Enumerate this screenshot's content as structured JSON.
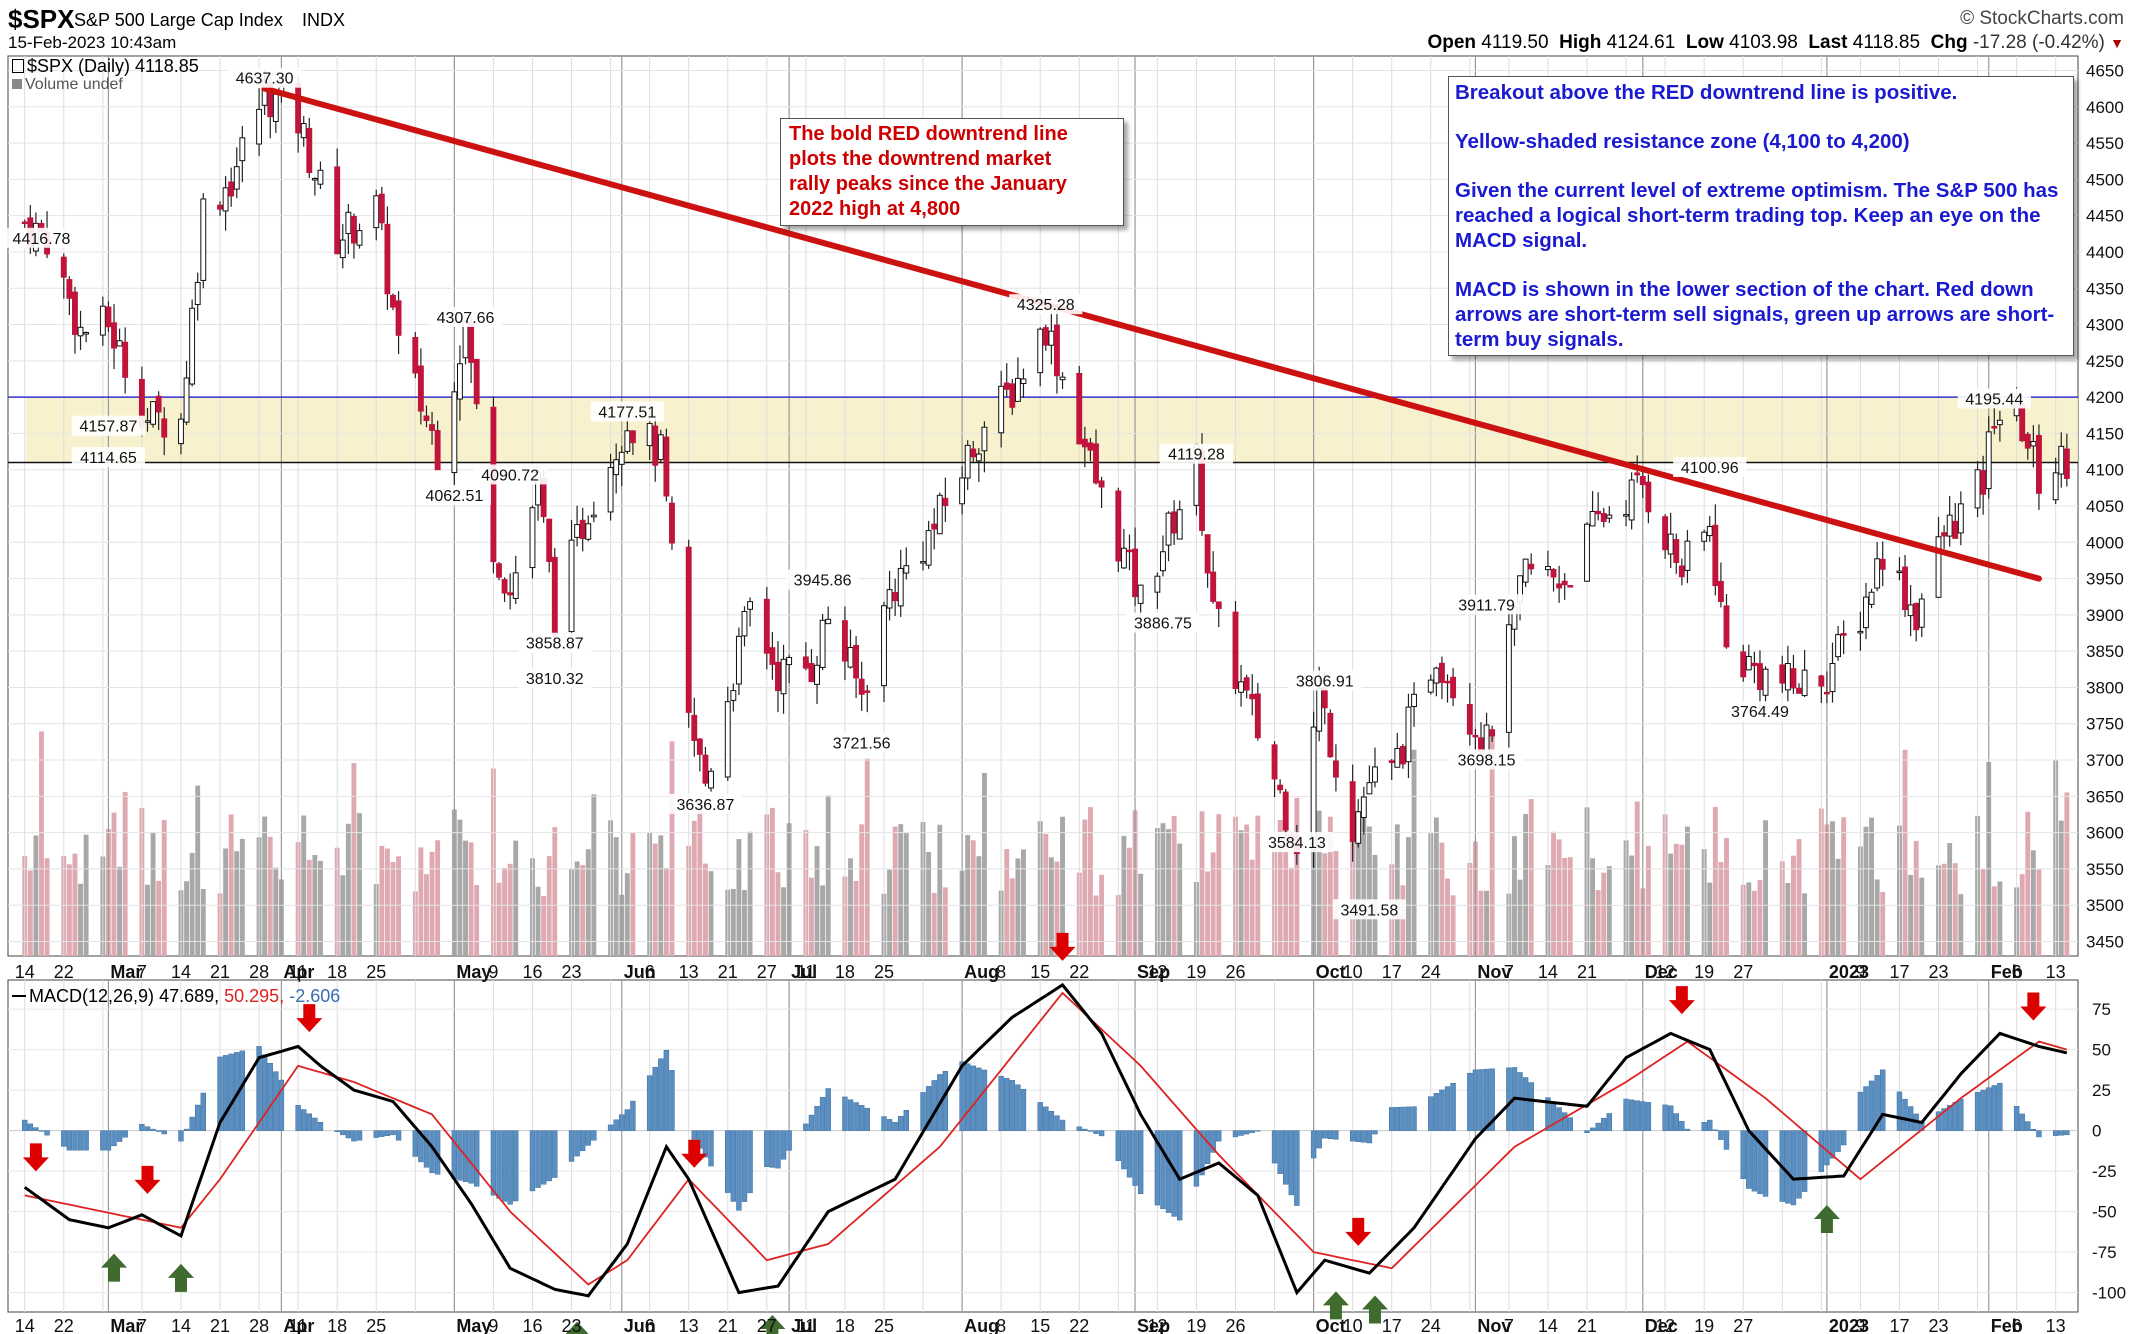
{
  "header": {
    "symbol": "$SPX",
    "description": "S&P 500 Large Cap Index",
    "exchange": "INDX",
    "timestamp": "15-Feb-2023 10:43am",
    "brand": "© StockCharts.com",
    "open_label": "Open",
    "open": "4119.50",
    "high_label": "High",
    "high": "4124.61",
    "low_label": "Low",
    "low": "4103.98",
    "last_label": "Last",
    "last": "4118.85",
    "chg_label": "Chg",
    "chg": "-17.28 (-0.42%)"
  },
  "legend": {
    "price": "$SPX (Daily) 4118.85",
    "volume": "Volume undef",
    "macd_label": "MACD(12,26,9)",
    "macd_value": "47.689,",
    "signal_value": "50.295,",
    "hist_value": "-2.606"
  },
  "annotations": {
    "red_note": [
      "The bold RED downtrend line",
      "plots the downtrend market",
      "rally peaks since the January",
      "2022 high at 4,800"
    ],
    "blue_note": [
      "Breakout above the RED downtrend line is positive.",
      "Yellow-shaded resistance zone (4,100 to 4,200)",
      "Given the current level of extreme optimism. The S&P 500 has reached a logical short-term trading top. Keep an eye on the MACD signal.",
      "MACD is shown in the lower section of the chart. Red down arrows are short-term sell signals, green up arrows are short-term buy signals."
    ]
  },
  "colors": {
    "up": "#ffffff",
    "down": "#c0143c",
    "candle_outline": "#000000",
    "trendline": "#cc1111",
    "zone": "#f6f0c4",
    "blue_line": "#3333cc",
    "macd": "#000000",
    "signal": "#dd2222",
    "hist": "#5b8fc2",
    "vol_up": "#a8a8a8",
    "vol_down": "#dfa9b1",
    "sell_arrow": "#dd0000",
    "buy_arrow": "#3f6b2f"
  },
  "chart_data": [
    {
      "type": "candlestick",
      "title": "$SPX (Daily) 4118.85",
      "y_axis": {
        "ticks": [
          3450,
          3500,
          3550,
          3600,
          3650,
          3700,
          3750,
          3800,
          3850,
          3900,
          3950,
          4000,
          4050,
          4100,
          4150,
          4200,
          4250,
          4300,
          4350,
          4400,
          4450,
          4500,
          4550,
          4600,
          4650
        ],
        "range": [
          3430,
          4670
        ]
      },
      "x_axis_labels": [
        "14",
        "22",
        "Mar",
        "7",
        "14",
        "21",
        "28",
        "Apr",
        "11",
        "18",
        "25",
        "May",
        "9",
        "16",
        "23",
        "Jun",
        "6",
        "13",
        "21",
        "27",
        "Jul",
        "11",
        "18",
        "25",
        "Aug",
        "8",
        "15",
        "22",
        "Sep",
        "12",
        "19",
        "26",
        "Oct",
        "10",
        "17",
        "24",
        "Nov",
        "7",
        "14",
        "21",
        "Dec",
        "12",
        "19",
        "27",
        "2023",
        "9",
        "17",
        "23",
        "Feb",
        "6",
        "13"
      ],
      "month_labels": [
        "Mar",
        "Apr",
        "May",
        "Jun",
        "Jul",
        "Aug",
        "Sep",
        "Oct",
        "Nov",
        "Dec",
        "2023",
        "Feb"
      ],
      "path": [
        [
          "Feb 14 2022",
          4440
        ],
        [
          "Feb 18 2022",
          4420
        ],
        [
          "Feb 24 2022",
          4290
        ],
        [
          "Mar 1 2022",
          4300
        ],
        [
          "Mar 8 2022",
          4170
        ],
        [
          "Mar 14 2022",
          4170
        ],
        [
          "Mar 18 2022",
          4460
        ],
        [
          "Mar 23 2022",
          4500
        ],
        [
          "Mar 29 2022",
          4620
        ],
        [
          "Apr 4 2022",
          4580
        ],
        [
          "Apr 11 2022",
          4420
        ],
        [
          "Apr 18 2022",
          4460
        ],
        [
          "Apr 22 2022",
          4270
        ],
        [
          "Apr 29 2022",
          4130
        ],
        [
          "May 4 2022",
          4300
        ],
        [
          "May 9 2022",
          4000
        ],
        [
          "May 12 2022",
          3930
        ],
        [
          "May 17 2022",
          4080
        ],
        [
          "May 20 2022",
          3900
        ],
        [
          "May 26 2022",
          4050
        ],
        [
          "Jun 2 2022",
          4170
        ],
        [
          "Jun 8 2022",
          4120
        ],
        [
          "Jun 13 2022",
          3750
        ],
        [
          "Jun 16 2022",
          3670
        ],
        [
          "Jun 24 2022",
          3910
        ],
        [
          "Jun 29 2022",
          3820
        ],
        [
          "Jul 5 2022",
          3830
        ],
        [
          "Jul 8 2022",
          3900
        ],
        [
          "Jul 14 2022",
          3790
        ],
        [
          "Jul 19 2022",
          3930
        ],
        [
          "Jul 27 2022",
          4020
        ],
        [
          "Aug 4 2022",
          4150
        ],
        [
          "Aug 10 2022",
          4210
        ],
        [
          "Aug 16 2022",
          4300
        ],
        [
          "Aug 19 2022",
          4230
        ],
        [
          "Aug 26 2022",
          4060
        ],
        [
          "Sep 2 2022",
          3920
        ],
        [
          "Sep 12 2022",
          4110
        ],
        [
          "Sep 15 2022",
          3900
        ],
        [
          "Sep 22 2022",
          3760
        ],
        [
          "Sep 30 2022",
          3590
        ],
        [
          "Oct 4 2022",
          3790
        ],
        [
          "Oct 10 2022",
          3610
        ],
        [
          "Oct 13 2022",
          3670
        ],
        [
          "Oct 17 2022",
          3680
        ],
        [
          "Oct 25 2022",
          3850
        ],
        [
          "Nov 3 2022",
          3720
        ],
        [
          "Nov 10 2022",
          3960
        ],
        [
          "Nov 17 2022",
          3950
        ],
        [
          "Nov 23 2022",
          4030
        ],
        [
          "Dec 1 2022",
          4080
        ],
        [
          "Dec 8 2022",
          3960
        ],
        [
          "Dec 13 2022",
          4020
        ],
        [
          "Dec 16 2022",
          3850
        ],
        [
          "Dec 22 2022",
          3820
        ],
        [
          "Dec 28 2022",
          3800
        ],
        [
          "Jan 3 2023",
          3820
        ],
        [
          "Jan 9 2023",
          3900
        ],
        [
          "Jan 13 2023",
          3990
        ],
        [
          "Jan 19 2023",
          3900
        ],
        [
          "Jan 24 2023",
          4010
        ],
        [
          "Jan 31 2023",
          4080
        ],
        [
          "Feb 2 2023",
          4180
        ],
        [
          "Feb 7 2023",
          4160
        ],
        [
          "Feb 10 2023",
          4090
        ],
        [
          "Feb 15 2023",
          4118
        ]
      ],
      "annotations": [
        [
          "Mar 1 2022",
          4157.87
        ],
        [
          "Mar 1 2022",
          4114.65
        ],
        [
          "Feb 17 2022",
          4416.78
        ],
        [
          "Mar 29 2022",
          4637.3
        ],
        [
          "May 4 2022",
          4307.66
        ],
        [
          "May 2 2022",
          4062.51
        ],
        [
          "May 12 2022",
          4090.72
        ],
        [
          "May 20 2022",
          3858.87
        ],
        [
          "May 20 2022",
          3810.32
        ],
        [
          "Jun 2 2022",
          4177.51
        ],
        [
          "Jul 7 2022",
          3945.86
        ],
        [
          "Jun 16 2022",
          3636.87
        ],
        [
          "Jul 14 2022",
          3721.56
        ],
        [
          "Aug 16 2022",
          4325.28
        ],
        [
          "Sep 12 2022",
          4119.28
        ],
        [
          "Sep 6 2022",
          3886.75
        ],
        [
          "Oct 5 2022",
          3806.91
        ],
        [
          "Sep 30 2022",
          3584.13
        ],
        [
          "Oct 13 2022",
          3491.58
        ],
        [
          "Nov 3 2022",
          3911.79
        ],
        [
          "Nov 3 2022",
          3698.15
        ],
        [
          "Dec 13 2022",
          4100.96
        ],
        [
          "Dec 22 2022",
          3764.49
        ],
        [
          "Feb 2 2023",
          4195.44
        ]
      ],
      "trendline": [
        [
          "Mar 29 2022",
          4625
        ],
        [
          "Feb 10 2023",
          3950
        ]
      ],
      "horizontal_lines": [
        4200,
        4110
      ],
      "resistance_zone": [
        4110,
        4200
      ]
    },
    {
      "type": "line",
      "title": "MACD(12,26,9) 47.689, 50.295, -2.606",
      "y_axis": {
        "ticks": [
          -100,
          -75,
          -50,
          -25,
          0,
          25,
          50,
          75
        ],
        "range": [
          -112,
          93
        ]
      },
      "series": [
        {
          "name": "MACD",
          "points": [
            [
              "Feb 14 2022",
              -35
            ],
            [
              "Feb 22 2022",
              -55
            ],
            [
              "Mar 1 2022",
              -60
            ],
            [
              "Mar 7 2022",
              -52
            ],
            [
              "Mar 14 2022",
              -65
            ],
            [
              "Mar 21 2022",
              5
            ],
            [
              "Mar 28 2022",
              45
            ],
            [
              "Apr 4 2022",
              52
            ],
            [
              "Apr 8 2022",
              40
            ],
            [
              "Apr 14 2022",
              25
            ],
            [
              "Apr 21 2022",
              18
            ],
            [
              "Apr 28 2022",
              -10
            ],
            [
              "May 5 2022",
              -45
            ],
            [
              "May 12 2022",
              -85
            ],
            [
              "May 20 2022",
              -98
            ],
            [
              "May 26 2022",
              -102
            ],
            [
              "Jun 2 2022",
              -70
            ],
            [
              "Jun 9 2022",
              -10
            ],
            [
              "Jun 13 2022",
              -30
            ],
            [
              "Jun 22 2022",
              -100
            ],
            [
              "Jun 29 2022",
              -96
            ],
            [
              "Jul 8 2022",
              -50
            ],
            [
              "Jul 20 2022",
              -30
            ],
            [
              "Aug 1 2022",
              40
            ],
            [
              "Aug 10 2022",
              70
            ],
            [
              "Aug 19 2022",
              90
            ],
            [
              "Aug 26 2022",
              60
            ],
            [
              "Sep 2 2022",
              10
            ],
            [
              "Sep 9 2022",
              -30
            ],
            [
              "Sep 16 2022",
              -20
            ],
            [
              "Sep 23 2022",
              -40
            ],
            [
              "Sep 30 2022",
              -100
            ],
            [
              "Oct 5 2022",
              -80
            ],
            [
              "Oct 13 2022",
              -88
            ],
            [
              "Oct 21 2022",
              -60
            ],
            [
              "Nov 1 2022",
              -5
            ],
            [
              "Nov 8 2022",
              20
            ],
            [
              "Nov 21 2022",
              15
            ],
            [
              "Nov 28 2022",
              45
            ],
            [
              "Dec 6 2022",
              60
            ],
            [
              "Dec 13 2022",
              50
            ],
            [
              "Dec 20 2022",
              0
            ],
            [
              "Dec 28 2022",
              -30
            ],
            [
              "Jan 6 2023",
              -28
            ],
            [
              "Jan 13 2023",
              10
            ],
            [
              "Jan 20 2023",
              5
            ],
            [
              "Jan 27 2023",
              35
            ],
            [
              "Feb 3 2023",
              60
            ],
            [
              "Feb 10 2023",
              52
            ],
            [
              "Feb 15 2023",
              48
            ]
          ]
        },
        {
          "name": "Signal",
          "points": [
            [
              "Feb 14 2022",
              -40
            ],
            [
              "Feb 28 2022",
              -50
            ],
            [
              "Mar 14 2022",
              -60
            ],
            [
              "Mar 21 2022",
              -30
            ],
            [
              "Apr 4 2022",
              40
            ],
            [
              "Apr 14 2022",
              30
            ],
            [
              "Apr 28 2022",
              10
            ],
            [
              "May 12 2022",
              -50
            ],
            [
              "May 26 2022",
              -95
            ],
            [
              "Jun 2 2022",
              -80
            ],
            [
              "Jun 13 2022",
              -30
            ],
            [
              "Jun 27 2022",
              -80
            ],
            [
              "Jul 8 2022",
              -70
            ],
            [
              "Jul 28 2022",
              -10
            ],
            [
              "Aug 19 2022",
              85
            ],
            [
              "Sep 2 2022",
              40
            ],
            [
              "Sep 16 2022",
              -15
            ],
            [
              "Oct 3 2022",
              -75
            ],
            [
              "Oct 17 2022",
              -85
            ],
            [
              "Nov 8 2022",
              -10
            ],
            [
              "Nov 28 2022",
              30
            ],
            [
              "Dec 9 2022",
              55
            ],
            [
              "Dec 23 2022",
              20
            ],
            [
              "Jan 9 2023",
              -30
            ],
            [
              "Jan 27 2023",
              20
            ],
            [
              "Feb 10 2023",
              55
            ],
            [
              "Feb 15 2023",
              50
            ]
          ]
        }
      ],
      "sell_signals": [
        "Feb 16 2022",
        "Mar 8 2022",
        "Apr 6 2022",
        "Jun 14 2022",
        "Aug 19 2022",
        "Oct 11 2022",
        "Dec 8 2022",
        "Feb 9 2023"
      ],
      "buy_signals": [
        "Mar 2 2022",
        "Mar 14 2022",
        "May 24 2022",
        "Jun 28 2022",
        "Oct 7 2022",
        "Oct 14 2022",
        "Jan 3 2023"
      ]
    }
  ]
}
